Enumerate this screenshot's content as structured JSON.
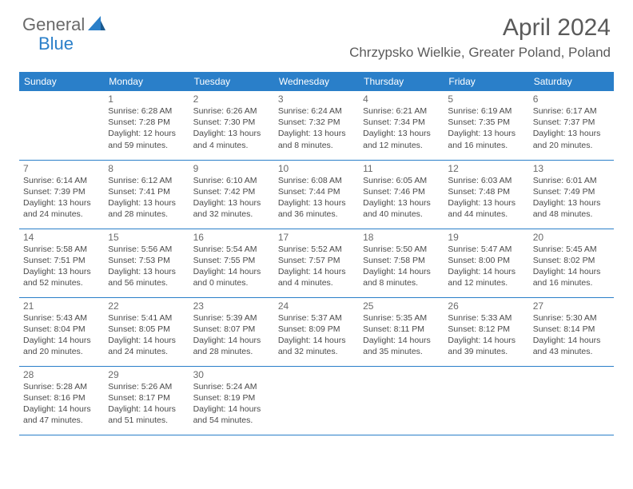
{
  "logo": {
    "textGeneral": "General",
    "textBlue": "Blue"
  },
  "title": "April 2024",
  "location": "Chrzypsko Wielkie, Greater Poland, Poland",
  "colors": {
    "headerBg": "#2a7fc9",
    "headerText": "#ffffff",
    "bodyText": "#4a4a4a",
    "dayNumText": "#6a6a6a",
    "border": "#2a7fc9",
    "logoGray": "#6a6a6a",
    "logoBlue": "#2a7fc9",
    "background": "#ffffff"
  },
  "fonts": {
    "title_fontsize": 30,
    "location_fontsize": 17,
    "header_fontsize": 12,
    "daynum_fontsize": 12,
    "dayinfo_fontsize": 10.5
  },
  "dayHeaders": [
    "Sunday",
    "Monday",
    "Tuesday",
    "Wednesday",
    "Thursday",
    "Friday",
    "Saturday"
  ],
  "weeks": [
    [
      null,
      {
        "d": "1",
        "sr": "6:28 AM",
        "ss": "7:28 PM",
        "dl": "12 hours and 59 minutes."
      },
      {
        "d": "2",
        "sr": "6:26 AM",
        "ss": "7:30 PM",
        "dl": "13 hours and 4 minutes."
      },
      {
        "d": "3",
        "sr": "6:24 AM",
        "ss": "7:32 PM",
        "dl": "13 hours and 8 minutes."
      },
      {
        "d": "4",
        "sr": "6:21 AM",
        "ss": "7:34 PM",
        "dl": "13 hours and 12 minutes."
      },
      {
        "d": "5",
        "sr": "6:19 AM",
        "ss": "7:35 PM",
        "dl": "13 hours and 16 minutes."
      },
      {
        "d": "6",
        "sr": "6:17 AM",
        "ss": "7:37 PM",
        "dl": "13 hours and 20 minutes."
      }
    ],
    [
      {
        "d": "7",
        "sr": "6:14 AM",
        "ss": "7:39 PM",
        "dl": "13 hours and 24 minutes."
      },
      {
        "d": "8",
        "sr": "6:12 AM",
        "ss": "7:41 PM",
        "dl": "13 hours and 28 minutes."
      },
      {
        "d": "9",
        "sr": "6:10 AM",
        "ss": "7:42 PM",
        "dl": "13 hours and 32 minutes."
      },
      {
        "d": "10",
        "sr": "6:08 AM",
        "ss": "7:44 PM",
        "dl": "13 hours and 36 minutes."
      },
      {
        "d": "11",
        "sr": "6:05 AM",
        "ss": "7:46 PM",
        "dl": "13 hours and 40 minutes."
      },
      {
        "d": "12",
        "sr": "6:03 AM",
        "ss": "7:48 PM",
        "dl": "13 hours and 44 minutes."
      },
      {
        "d": "13",
        "sr": "6:01 AM",
        "ss": "7:49 PM",
        "dl": "13 hours and 48 minutes."
      }
    ],
    [
      {
        "d": "14",
        "sr": "5:58 AM",
        "ss": "7:51 PM",
        "dl": "13 hours and 52 minutes."
      },
      {
        "d": "15",
        "sr": "5:56 AM",
        "ss": "7:53 PM",
        "dl": "13 hours and 56 minutes."
      },
      {
        "d": "16",
        "sr": "5:54 AM",
        "ss": "7:55 PM",
        "dl": "14 hours and 0 minutes."
      },
      {
        "d": "17",
        "sr": "5:52 AM",
        "ss": "7:57 PM",
        "dl": "14 hours and 4 minutes."
      },
      {
        "d": "18",
        "sr": "5:50 AM",
        "ss": "7:58 PM",
        "dl": "14 hours and 8 minutes."
      },
      {
        "d": "19",
        "sr": "5:47 AM",
        "ss": "8:00 PM",
        "dl": "14 hours and 12 minutes."
      },
      {
        "d": "20",
        "sr": "5:45 AM",
        "ss": "8:02 PM",
        "dl": "14 hours and 16 minutes."
      }
    ],
    [
      {
        "d": "21",
        "sr": "5:43 AM",
        "ss": "8:04 PM",
        "dl": "14 hours and 20 minutes."
      },
      {
        "d": "22",
        "sr": "5:41 AM",
        "ss": "8:05 PM",
        "dl": "14 hours and 24 minutes."
      },
      {
        "d": "23",
        "sr": "5:39 AM",
        "ss": "8:07 PM",
        "dl": "14 hours and 28 minutes."
      },
      {
        "d": "24",
        "sr": "5:37 AM",
        "ss": "8:09 PM",
        "dl": "14 hours and 32 minutes."
      },
      {
        "d": "25",
        "sr": "5:35 AM",
        "ss": "8:11 PM",
        "dl": "14 hours and 35 minutes."
      },
      {
        "d": "26",
        "sr": "5:33 AM",
        "ss": "8:12 PM",
        "dl": "14 hours and 39 minutes."
      },
      {
        "d": "27",
        "sr": "5:30 AM",
        "ss": "8:14 PM",
        "dl": "14 hours and 43 minutes."
      }
    ],
    [
      {
        "d": "28",
        "sr": "5:28 AM",
        "ss": "8:16 PM",
        "dl": "14 hours and 47 minutes."
      },
      {
        "d": "29",
        "sr": "5:26 AM",
        "ss": "8:17 PM",
        "dl": "14 hours and 51 minutes."
      },
      {
        "d": "30",
        "sr": "5:24 AM",
        "ss": "8:19 PM",
        "dl": "14 hours and 54 minutes."
      },
      null,
      null,
      null,
      null
    ]
  ],
  "labels": {
    "sunrise": "Sunrise:",
    "sunset": "Sunset:",
    "daylight": "Daylight:"
  }
}
